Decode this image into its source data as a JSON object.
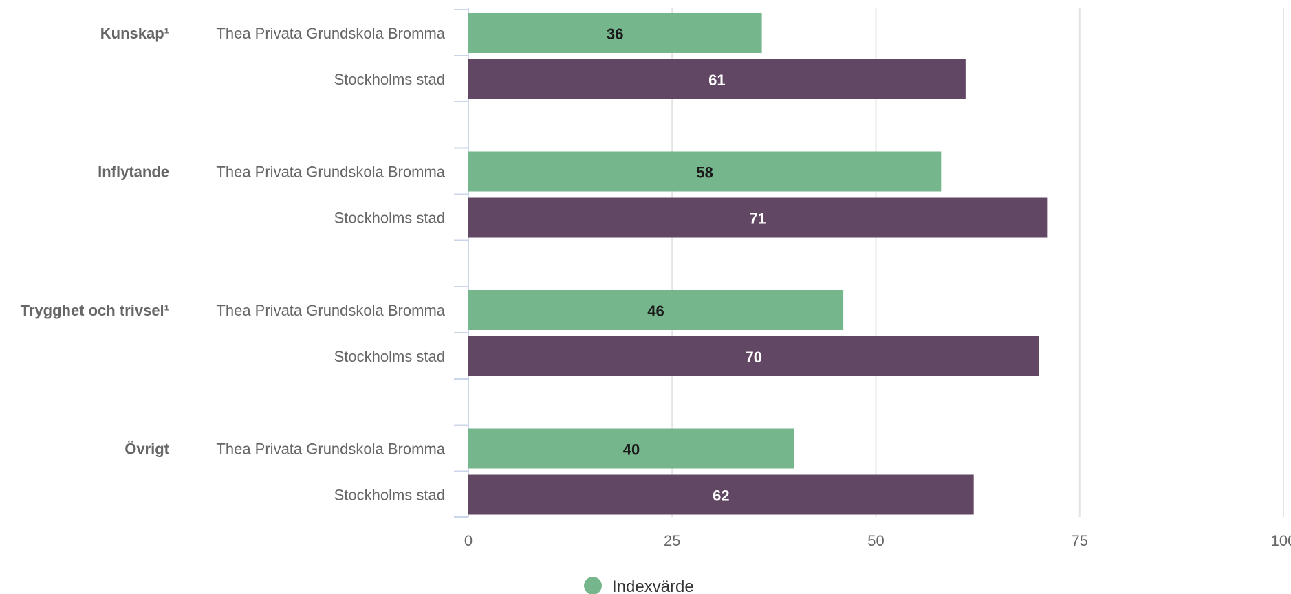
{
  "chart_data": {
    "type": "bar",
    "orientation": "horizontal",
    "groups": [
      {
        "name": "Kunskap¹",
        "rows": [
          {
            "label": "Thea Privata Grundskola Bromma",
            "value": 36,
            "series": "school"
          },
          {
            "label": "Stockholms stad",
            "value": 61,
            "series": "city"
          }
        ]
      },
      {
        "name": "Inflytande",
        "rows": [
          {
            "label": "Thea Privata Grundskola Bromma",
            "value": 58,
            "series": "school"
          },
          {
            "label": "Stockholms stad",
            "value": 71,
            "series": "city"
          }
        ]
      },
      {
        "name": "Trygghet och trivsel¹",
        "rows": [
          {
            "label": "Thea Privata Grundskola Bromma",
            "value": 46,
            "series": "school"
          },
          {
            "label": "Stockholms stad",
            "value": 70,
            "series": "city"
          }
        ]
      },
      {
        "name": "Övrigt",
        "rows": [
          {
            "label": "Thea Privata Grundskola Bromma",
            "value": 40,
            "series": "school"
          },
          {
            "label": "Stockholms stad",
            "value": 62,
            "series": "city"
          }
        ]
      }
    ],
    "xlim": [
      0,
      100
    ],
    "xticks": [
      0,
      25,
      50,
      75,
      100
    ],
    "grid": true,
    "legend": {
      "label": "Indexvärde",
      "placement": "bottom-center"
    },
    "colors": {
      "school": "#76b68c",
      "city": "#614764",
      "school_label": "#1a1a1a",
      "city_label": "#ffffff",
      "grid": "#e3e3e3",
      "axis": "#ccd6eb"
    }
  }
}
